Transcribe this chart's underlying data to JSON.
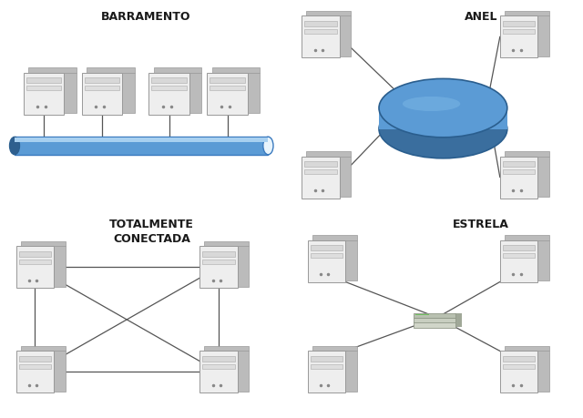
{
  "title_barramento": "BARRAMENTO",
  "title_anel": "ANEL",
  "title_conectada": "TOTALMENTE\nCONECTADA",
  "title_estrela": "ESTRELA",
  "bg_color": "#ffffff",
  "text_color": "#1a1a1a",
  "line_color": "#555555",
  "bus_color_main": "#5b9bd5",
  "bus_color_highlight": "#a8d0f0",
  "ring_color_main": "#5b9bd5",
  "ring_color_dark": "#3a6e9e",
  "computer_body": "#eeeeee",
  "computer_shadow": "#bbbbbb",
  "font_size_title": 9,
  "font_weight": "bold"
}
